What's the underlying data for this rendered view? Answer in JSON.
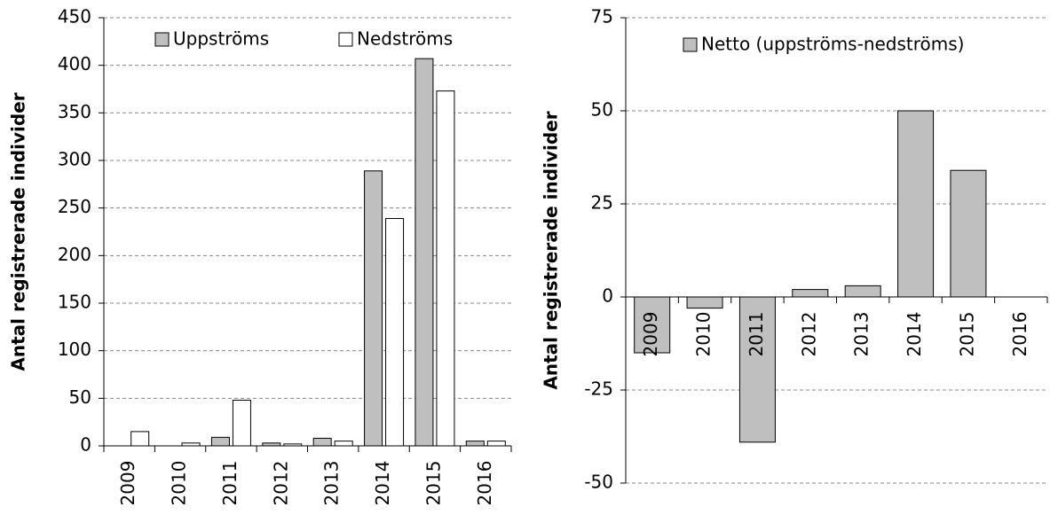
{
  "chart_data": [
    {
      "type": "bar",
      "y_label": "Antal registrerade individer",
      "categories": [
        "2009",
        "2010",
        "2011",
        "2012",
        "2013",
        "2014",
        "2015",
        "2016"
      ],
      "series": [
        {
          "name": "Uppströms",
          "color": "#bfbfbf",
          "values": [
            0,
            0,
            9,
            3,
            8,
            289,
            407,
            5
          ]
        },
        {
          "name": "Nedströms",
          "color": "#ffffff",
          "values": [
            15,
            3,
            48,
            2,
            5,
            239,
            373,
            5
          ]
        }
      ],
      "ylim": [
        0,
        450
      ],
      "yticks": [
        0,
        50,
        100,
        150,
        200,
        250,
        300,
        350,
        400,
        450
      ],
      "grid": true,
      "legend": "top"
    },
    {
      "type": "bar",
      "y_label": "Antal registrerade individer",
      "categories": [
        "2009",
        "2010",
        "2011",
        "2012",
        "2013",
        "2014",
        "2015",
        "2016"
      ],
      "series": [
        {
          "name": "Netto (uppströms-nedströms)",
          "color": "#bfbfbf",
          "values": [
            -15,
            -3,
            -39,
            2,
            3,
            50,
            34,
            0
          ]
        }
      ],
      "ylim": [
        -50,
        75
      ],
      "yticks": [
        -50,
        -25,
        0,
        25,
        50,
        75
      ],
      "grid": true,
      "legend": "top"
    }
  ]
}
